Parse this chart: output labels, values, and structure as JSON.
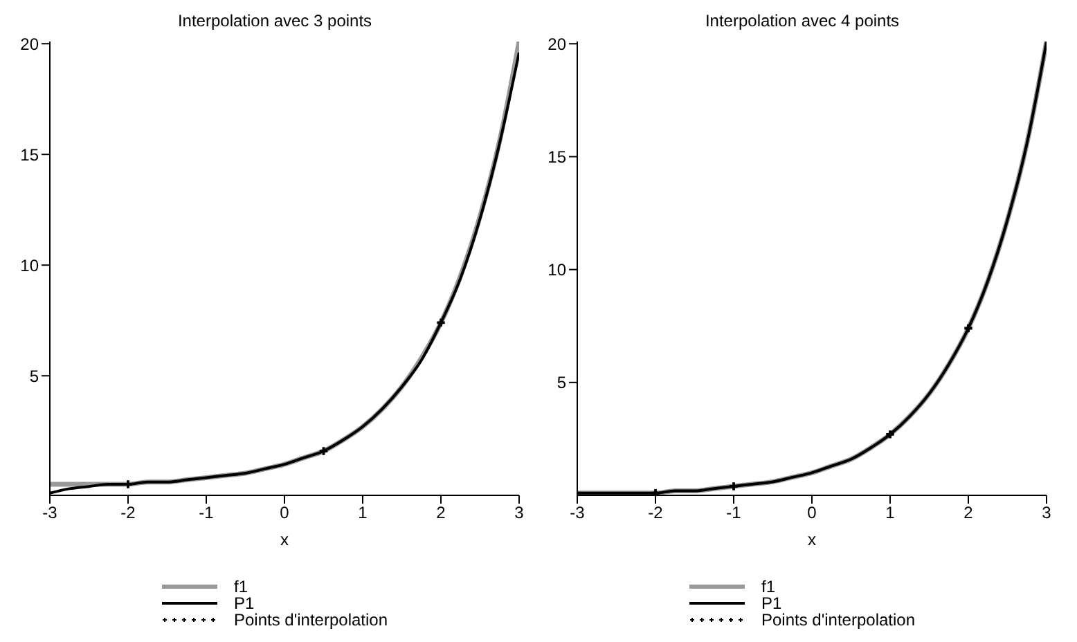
{
  "chart_data": [
    {
      "type": "line",
      "title": "Interpolation avec 3 points",
      "xlabel": "x",
      "x": [
        -3,
        -2.75,
        -2.5,
        -2.25,
        -2,
        -1.75,
        -1.5,
        -1.25,
        -1,
        -0.75,
        -0.5,
        -0.25,
        0,
        0.25,
        0.5,
        0.75,
        1,
        1.25,
        1.5,
        1.75,
        2,
        2.25,
        2.5,
        2.75,
        3
      ],
      "xlim": [
        -3,
        3
      ],
      "xticks": [
        -3,
        -2,
        -1,
        0,
        1,
        2,
        3
      ],
      "ylim": [
        -0.4,
        20.1
      ],
      "yticks": [
        5,
        10,
        15,
        20
      ],
      "grid": false,
      "legend": "bottom",
      "line_style": "solid",
      "series": [
        {
          "name": "f1",
          "color": "#999999",
          "values": [
            0.1,
            0.1,
            0.1,
            0.1,
            0.1,
            0.2,
            0.2,
            0.3,
            0.4,
            0.5,
            0.6,
            0.8,
            1,
            1.3,
            1.6,
            2.1,
            2.7,
            3.5,
            4.5,
            5.8,
            7.4,
            9.5,
            12.2,
            15.6,
            20.1
          ]
        },
        {
          "name": "P1",
          "color": "#000000",
          "values": [
            -0.3,
            -0.1,
            0,
            0.1,
            0.1,
            0.2,
            0.2,
            0.3,
            0.4,
            0.5,
            0.6,
            0.8,
            1,
            1.3,
            1.6,
            2.1,
            2.7,
            3.5,
            4.5,
            5.7,
            7.4,
            9.4,
            12.1,
            15.5,
            19.6
          ]
        },
        {
          "name": "Points d'interpolation",
          "type": "scatter",
          "marker": "cross",
          "color": "#000000",
          "x": [
            -2,
            0.5,
            2
          ],
          "values": [
            0.1,
            1.6,
            7.4
          ]
        }
      ]
    },
    {
      "type": "line",
      "title": "Interpolation avec 4 points",
      "xlabel": "x",
      "x": [
        -3,
        -2.75,
        -2.5,
        -2.25,
        -2,
        -1.75,
        -1.5,
        -1.25,
        -1,
        -0.75,
        -0.5,
        -0.25,
        0,
        0.25,
        0.5,
        0.75,
        1,
        1.25,
        1.5,
        1.75,
        2,
        2.25,
        2.5,
        2.75,
        3
      ],
      "xlim": [
        -3,
        3
      ],
      "xticks": [
        -3,
        -2,
        -1,
        0,
        1,
        2,
        3
      ],
      "ylim": [
        0,
        20.1
      ],
      "yticks": [
        5,
        10,
        15,
        20
      ],
      "grid": false,
      "legend": "bottom",
      "line_style": "solid",
      "series": [
        {
          "name": "f1",
          "color": "#999999",
          "values": [
            0.1,
            0.1,
            0.1,
            0.1,
            0.1,
            0.2,
            0.2,
            0.3,
            0.4,
            0.5,
            0.6,
            0.8,
            1,
            1.3,
            1.6,
            2.1,
            2.7,
            3.5,
            4.5,
            5.8,
            7.4,
            9.5,
            12.2,
            15.6,
            20.1
          ]
        },
        {
          "name": "P1",
          "color": "#000000",
          "values": [
            0.1,
            0.1,
            0.1,
            0.1,
            0.1,
            0.2,
            0.2,
            0.3,
            0.4,
            0.5,
            0.6,
            0.8,
            1,
            1.3,
            1.6,
            2.1,
            2.7,
            3.5,
            4.5,
            5.8,
            7.4,
            9.5,
            12.2,
            15.6,
            20.1
          ]
        },
        {
          "name": "Points d'interpolation",
          "type": "scatter",
          "marker": "cross",
          "color": "#000000",
          "x": [
            -2,
            -1,
            1,
            2
          ],
          "values": [
            0.1,
            0.4,
            2.7,
            7.4
          ]
        }
      ]
    }
  ]
}
